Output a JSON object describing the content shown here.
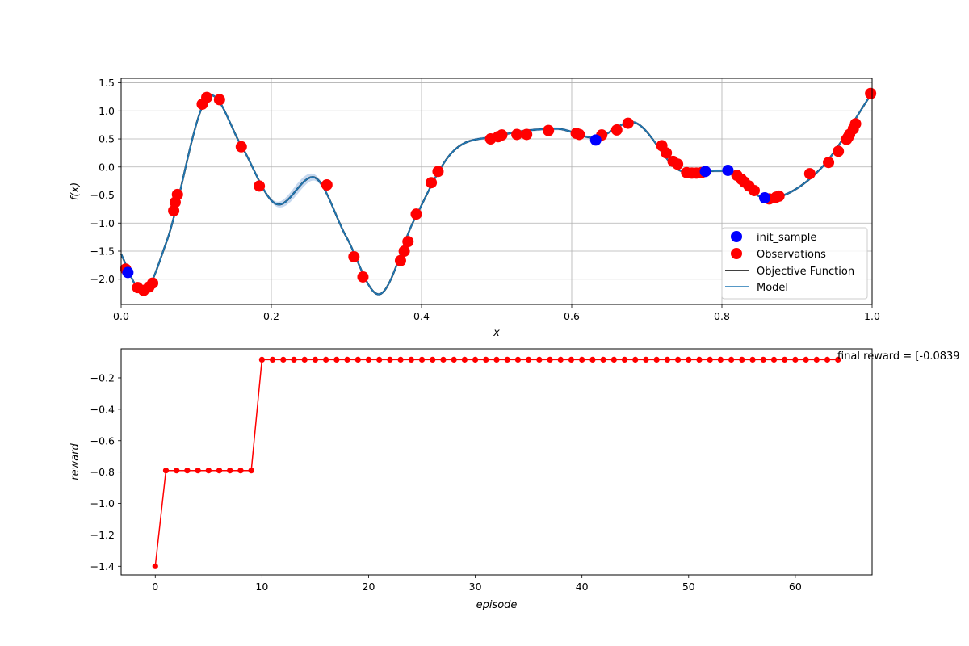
{
  "colors": {
    "observation": "#ff0000",
    "init_sample": "#0000ff",
    "objective": "#000000",
    "model": "#1f77b4",
    "model_ci": "#aec7e8",
    "reward_line": "#ff0000",
    "grid": "#b0b0b0"
  },
  "chart_data": [
    {
      "type": "scatter",
      "xlabel": "x",
      "ylabel": "f(x)",
      "xlim": [
        0.0,
        1.0
      ],
      "ylim": [
        -2.45,
        1.58
      ],
      "grid": true,
      "legend_position": "lower-right",
      "x_ticks": [
        "0.0",
        "0.2",
        "0.4",
        "0.6",
        "0.8",
        "1.0"
      ],
      "y_ticks": [
        "1.5",
        "1.0",
        "0.5",
        "0.0",
        "−0.5",
        "−1.0",
        "−1.5",
        "−2.0"
      ],
      "legend": [
        "init_sample",
        "Observations",
        "Objective Function",
        "Model"
      ],
      "series": [
        {
          "name": "init_sample",
          "x": [
            0.009,
            0.632,
            0.778,
            0.808,
            0.857
          ],
          "y": [
            -1.88,
            0.48,
            -0.08,
            -0.06,
            -0.55
          ]
        },
        {
          "name": "Observations",
          "x": [
            0.006,
            0.022,
            0.03,
            0.037,
            0.042,
            0.07,
            0.072,
            0.075,
            0.108,
            0.114,
            0.131,
            0.16,
            0.184,
            0.274,
            0.31,
            0.322,
            0.372,
            0.377,
            0.382,
            0.393,
            0.413,
            0.422,
            0.492,
            0.502,
            0.507,
            0.527,
            0.54,
            0.569,
            0.606,
            0.61,
            0.64,
            0.66,
            0.675,
            0.72,
            0.726,
            0.735,
            0.741,
            0.753,
            0.76,
            0.766,
            0.773,
            0.82,
            0.826,
            0.83,
            0.836,
            0.843,
            0.863,
            0.872,
            0.876,
            0.917,
            0.942,
            0.955,
            0.966,
            0.968,
            0.97,
            0.975,
            0.978,
            0.998
          ],
          "y": [
            -1.82,
            -2.15,
            -2.2,
            -2.14,
            -2.07,
            -0.78,
            -0.63,
            -0.49,
            1.12,
            1.24,
            1.2,
            0.36,
            -0.34,
            -0.32,
            -1.6,
            -1.96,
            -1.67,
            -1.5,
            -1.33,
            -0.84,
            -0.28,
            -0.08,
            0.5,
            0.54,
            0.57,
            0.58,
            0.58,
            0.65,
            0.6,
            0.58,
            0.57,
            0.66,
            0.78,
            0.38,
            0.25,
            0.1,
            0.05,
            -0.1,
            -0.11,
            -0.11,
            -0.1,
            -0.15,
            -0.22,
            -0.27,
            -0.34,
            -0.42,
            -0.57,
            -0.54,
            -0.52,
            -0.12,
            0.08,
            0.28,
            0.49,
            0.53,
            0.58,
            0.68,
            0.77,
            1.31
          ]
        },
        {
          "name": "Objective Function",
          "x": [
            0.0,
            0.02,
            0.03,
            0.06,
            0.12,
            0.16,
            0.21,
            0.255,
            0.3,
            0.343,
            0.39,
            0.44,
            0.5,
            0.58,
            0.63,
            0.68,
            0.75,
            0.8,
            0.86,
            0.93,
            1.0
          ],
          "y": [
            -1.55,
            -2.12,
            -2.2,
            -1.35,
            1.28,
            0.38,
            -0.67,
            -0.18,
            -1.25,
            -2.27,
            -0.95,
            0.25,
            0.55,
            0.68,
            0.52,
            0.8,
            -0.08,
            -0.07,
            -0.56,
            -0.05,
            1.32
          ]
        },
        {
          "name": "Model",
          "x": [
            0.0,
            0.02,
            0.03,
            0.06,
            0.12,
            0.16,
            0.21,
            0.255,
            0.3,
            0.343,
            0.39,
            0.44,
            0.5,
            0.58,
            0.63,
            0.68,
            0.75,
            0.8,
            0.86,
            0.93,
            1.0
          ],
          "y": [
            -1.55,
            -2.12,
            -2.2,
            -1.35,
            1.28,
            0.38,
            -0.67,
            -0.18,
            -1.25,
            -2.27,
            -0.95,
            0.25,
            0.55,
            0.68,
            0.52,
            0.8,
            -0.08,
            -0.07,
            -0.56,
            -0.05,
            1.32
          ]
        }
      ]
    },
    {
      "type": "line",
      "xlabel": "episode",
      "ylabel": "reward",
      "xlim": [
        -3.2,
        67.2
      ],
      "ylim": [
        -1.455,
        -0.015
      ],
      "grid": false,
      "x_ticks": [
        "0",
        "10",
        "20",
        "30",
        "40",
        "50",
        "60"
      ],
      "y_ticks": [
        "−0.2",
        "−0.4",
        "−0.6",
        "−0.8",
        "−1.0",
        "−1.2",
        "−1.4"
      ],
      "annotation": "final reward = [-0.0839",
      "series": [
        {
          "x": [
            0,
            1,
            2,
            3,
            4,
            5,
            6,
            7,
            8,
            9,
            10,
            11,
            12,
            13,
            14,
            15,
            16,
            17,
            18,
            19,
            20,
            21,
            22,
            23,
            24,
            25,
            26,
            27,
            28,
            29,
            30,
            31,
            32,
            33,
            34,
            35,
            36,
            37,
            38,
            39,
            40,
            41,
            42,
            43,
            44,
            45,
            46,
            47,
            48,
            49,
            50,
            51,
            52,
            53,
            54,
            55,
            56,
            57,
            58,
            59,
            60,
            61,
            62,
            63,
            64
          ],
          "y": [
            -1.4,
            -0.79,
            -0.79,
            -0.79,
            -0.79,
            -0.79,
            -0.79,
            -0.79,
            -0.79,
            -0.79,
            -0.0839,
            -0.0839,
            -0.0839,
            -0.0839,
            -0.0839,
            -0.0839,
            -0.0839,
            -0.0839,
            -0.0839,
            -0.0839,
            -0.0839,
            -0.0839,
            -0.0839,
            -0.0839,
            -0.0839,
            -0.0839,
            -0.0839,
            -0.0839,
            -0.0839,
            -0.0839,
            -0.0839,
            -0.0839,
            -0.0839,
            -0.0839,
            -0.0839,
            -0.0839,
            -0.0839,
            -0.0839,
            -0.0839,
            -0.0839,
            -0.0839,
            -0.0839,
            -0.0839,
            -0.0839,
            -0.0839,
            -0.0839,
            -0.0839,
            -0.0839,
            -0.0839,
            -0.0839,
            -0.0839,
            -0.0839,
            -0.0839,
            -0.0839,
            -0.0839,
            -0.0839,
            -0.0839,
            -0.0839,
            -0.0839,
            -0.0839,
            -0.0839,
            -0.0839,
            -0.0839,
            -0.0839,
            -0.0839
          ]
        }
      ]
    }
  ]
}
